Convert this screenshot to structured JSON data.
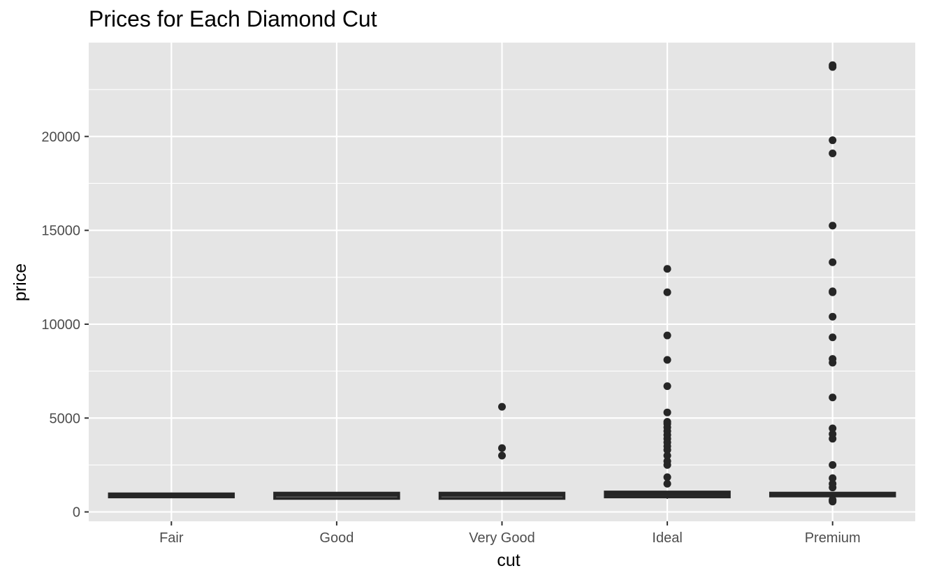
{
  "chart_data": {
    "type": "boxplot",
    "title": "Prices for Each Diamond Cut",
    "xlabel": "cut",
    "ylabel": "price",
    "categories": [
      "Fair",
      "Good",
      "Very Good",
      "Ideal",
      "Premium"
    ],
    "ylim": [
      -500,
      25000
    ],
    "yticks": [
      0,
      5000,
      10000,
      15000,
      20000
    ],
    "ytick_labels": [
      "0",
      "5000",
      "10000",
      "15000",
      "20000"
    ],
    "grid": true,
    "colors": {
      "panel": "#e5e5e5",
      "grid": "#ffffff",
      "box": "#262626",
      "points": "#262626",
      "tick_text": "#4d4d4d",
      "tick_marks": "#333333"
    },
    "boxes": [
      {
        "category": "Fair",
        "low": 780,
        "q1": 800,
        "median": 880,
        "q3": 960,
        "high": 1030,
        "outliers": []
      },
      {
        "category": "Good",
        "low": 700,
        "q1": 720,
        "median": 880,
        "q3": 1000,
        "high": 1060,
        "outliers": []
      },
      {
        "category": "Very Good",
        "low": 650,
        "q1": 720,
        "median": 880,
        "q3": 1000,
        "high": 1060,
        "outliers": [
          3000,
          3400,
          5600
        ]
      },
      {
        "category": "Ideal",
        "low": 700,
        "q1": 800,
        "median": 940,
        "q3": 1060,
        "high": 1100,
        "outliers": [
          1500,
          1850,
          2500,
          2700,
          3000,
          3300,
          3500,
          3700,
          3900,
          4100,
          4300,
          4500,
          4700,
          4800,
          5300,
          6700,
          8100,
          9400,
          11700,
          12950
        ]
      },
      {
        "category": "Premium",
        "low": 550,
        "q1": 850,
        "median": 920,
        "q3": 1000,
        "high": 1060,
        "outliers": [
          550,
          600,
          650,
          1300,
          1500,
          1800,
          2500,
          3900,
          4150,
          4450,
          6100,
          7950,
          8150,
          9300,
          10400,
          11700,
          11750,
          13300,
          15250,
          19100,
          19800,
          23700,
          23800
        ]
      }
    ]
  }
}
